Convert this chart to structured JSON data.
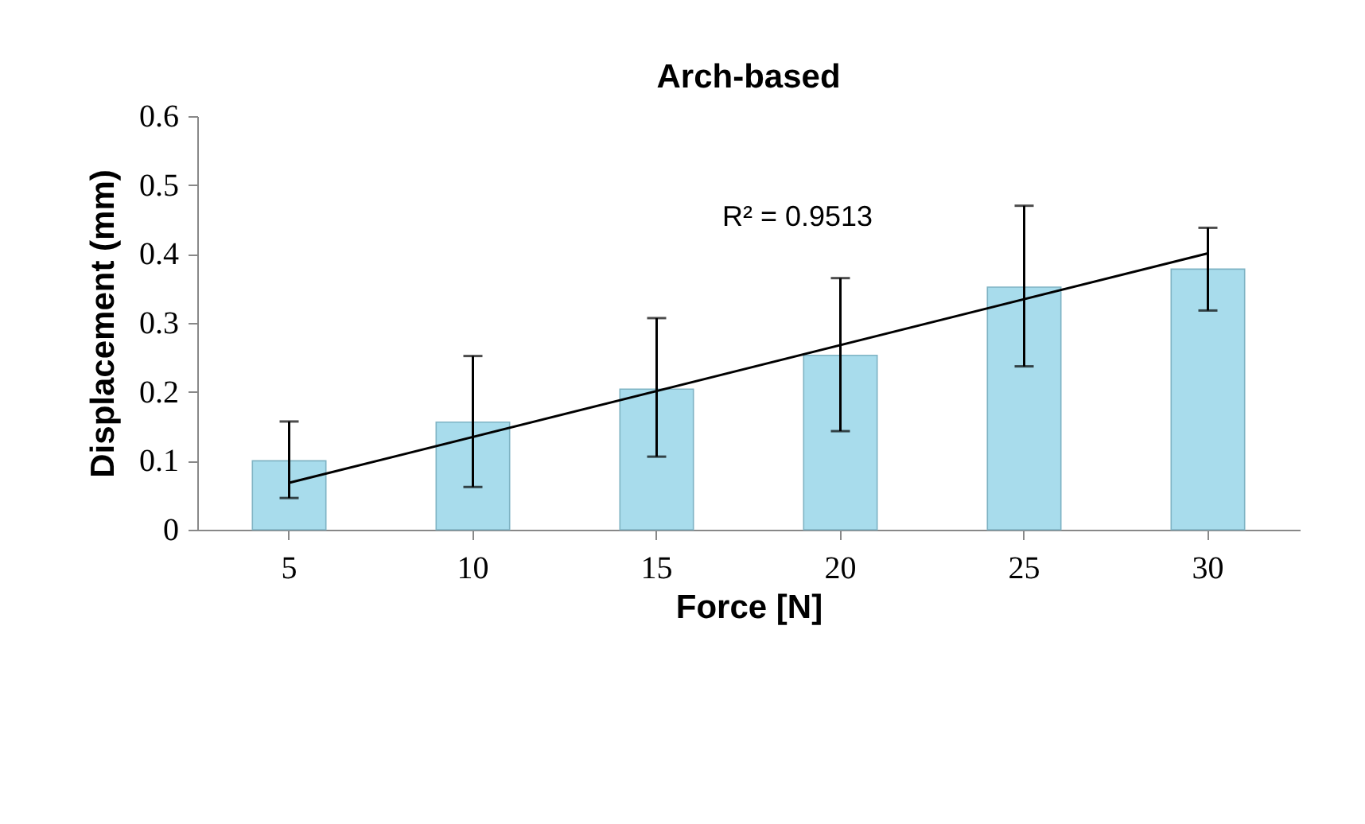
{
  "chart_data": {
    "type": "bar",
    "title": "Arch-based",
    "xlabel": "Force [N]",
    "ylabel": "Displacement (mm)",
    "categories": [
      "5",
      "10",
      "15",
      "20",
      "25",
      "30"
    ],
    "series": [
      {
        "color": "#a8dcec",
        "values": [
          0.1,
          0.156,
          0.204,
          0.253,
          0.352,
          0.378
        ],
        "errors": [
          [
            0.046,
            0.157
          ],
          [
            0.062,
            0.252
          ],
          [
            0.106,
            0.307
          ],
          [
            0.143,
            0.365
          ],
          [
            0.237,
            0.47
          ],
          [
            0.318,
            0.438
          ]
        ]
      },
      {
        "type": "line",
        "color": "#000000",
        "x": [
          "5",
          "30"
        ],
        "values": [
          0.068,
          0.401
        ]
      }
    ],
    "annotations": [
      "R² = 0.9513"
    ],
    "ylim": [
      0,
      0.6
    ],
    "yticks": [
      0,
      0.1,
      0.2,
      0.3,
      0.4,
      0.5,
      0.6
    ]
  }
}
